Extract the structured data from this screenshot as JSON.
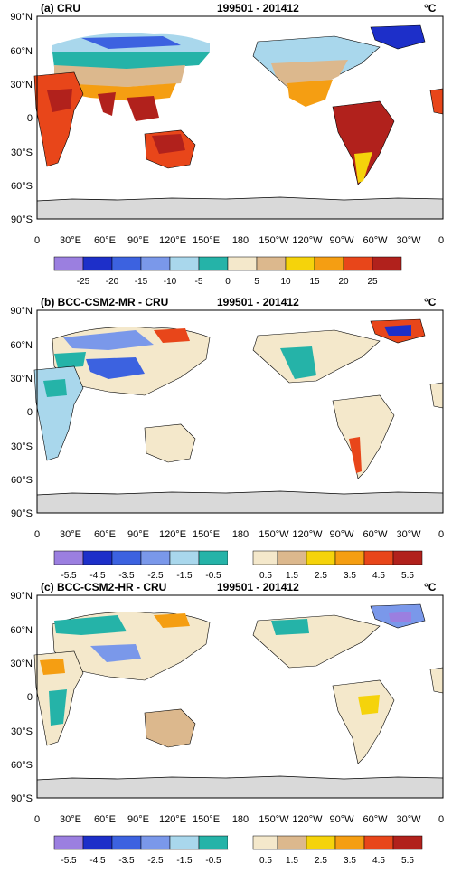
{
  "figures": [
    {
      "title": "(a) CRU",
      "period": "199501 - 201412",
      "unit": "°C",
      "lat_ticks": [
        "90°N",
        "60°N",
        "30°N",
        "0",
        "30°S",
        "60°S",
        "90°S"
      ],
      "lon_ticks": [
        "0",
        "30°E",
        "60°E",
        "90°E",
        "120°E",
        "150°E",
        "180",
        "150°W",
        "120°W",
        "90°W",
        "60°W",
        "30°W",
        "0"
      ],
      "colorbar": {
        "labels": [
          "-25",
          "-20",
          "-15",
          "-10",
          "-5",
          "0",
          "5",
          "10",
          "15",
          "20",
          "25"
        ],
        "colors": [
          "#9b7fe0",
          "#1d2fc9",
          "#3c62e0",
          "#7a98ea",
          "#a9d7ec",
          "#25b3a8",
          "#f4e8cb",
          "#dcb88d",
          "#f5d30b",
          "#f59e12",
          "#e8461a",
          "#b1211c"
        ]
      }
    },
    {
      "title": "(b) BCC-CSM2-MR - CRU",
      "period": "199501 - 201412",
      "unit": "°C",
      "lat_ticks": [
        "90°N",
        "60°N",
        "30°N",
        "0",
        "30°S",
        "60°S",
        "90°S"
      ],
      "lon_ticks": [
        "0",
        "30°E",
        "60°E",
        "90°E",
        "120°E",
        "150°E",
        "180",
        "150°W",
        "120°W",
        "90°W",
        "60°W",
        "30°W",
        "0"
      ],
      "colorbar": {
        "labels": [
          "-5.5",
          "-4.5",
          "-3.5",
          "-2.5",
          "-1.5",
          "-0.5",
          "0.5",
          "1.5",
          "2.5",
          "3.5",
          "4.5",
          "5.5"
        ],
        "colors": [
          "#9b7fe0",
          "#1d2fc9",
          "#3c62e0",
          "#7a98ea",
          "#a9d7ec",
          "#25b3a8",
          "#ffffff",
          "#f4e8cb",
          "#dcb88d",
          "#f5d30b",
          "#f59e12",
          "#e8461a",
          "#b1211c"
        ]
      }
    },
    {
      "title": "(c) BCC-CSM2-HR - CRU",
      "period": "199501 - 201412",
      "unit": "°C",
      "lat_ticks": [
        "90°N",
        "60°N",
        "30°N",
        "0",
        "30°S",
        "60°S",
        "90°S"
      ],
      "lon_ticks": [
        "0",
        "30°E",
        "60°E",
        "90°E",
        "120°E",
        "150°E",
        "180",
        "150°W",
        "120°W",
        "90°W",
        "60°W",
        "30°W",
        "0"
      ],
      "colorbar": {
        "labels": [
          "-5.5",
          "-4.5",
          "-3.5",
          "-2.5",
          "-1.5",
          "-0.5",
          "0.5",
          "1.5",
          "2.5",
          "3.5",
          "4.5",
          "5.5"
        ],
        "colors": [
          "#9b7fe0",
          "#1d2fc9",
          "#3c62e0",
          "#7a98ea",
          "#a9d7ec",
          "#25b3a8",
          "#ffffff",
          "#f4e8cb",
          "#dcb88d",
          "#f5d30b",
          "#f59e12",
          "#e8461a",
          "#b1211c"
        ]
      }
    }
  ]
}
